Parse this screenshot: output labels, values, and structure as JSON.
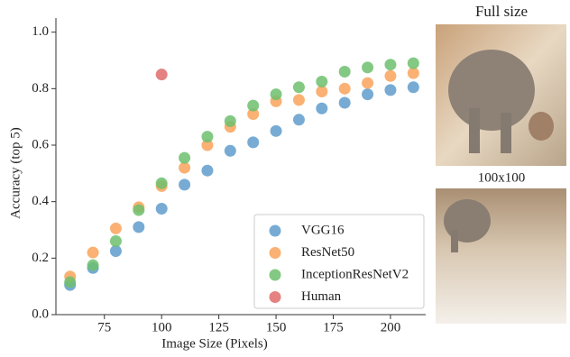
{
  "chart_data": {
    "type": "scatter",
    "xlabel": "Image Size (Pixels)",
    "ylabel": "Accuracy (top 5)",
    "xlim": [
      55,
      215
    ],
    "ylim": [
      0,
      1.05
    ],
    "xticks": [
      75,
      100,
      125,
      150,
      175,
      200
    ],
    "yticks": [
      {
        "value": 0,
        "label": "0.0"
      },
      0.2,
      0.4,
      0.6,
      0.8,
      {
        "value": 1,
        "label": "1.0"
      }
    ],
    "legend": "lower right",
    "series": [
      {
        "name": "VGG16",
        "color": "#5f9ccd",
        "x": [
          60,
          70,
          80,
          90,
          100,
          110,
          120,
          130,
          140,
          150,
          160,
          170,
          180,
          190,
          200,
          210
        ],
        "values": [
          0.105,
          0.165,
          0.225,
          0.31,
          0.375,
          0.46,
          0.51,
          0.58,
          0.61,
          0.65,
          0.69,
          0.73,
          0.75,
          0.78,
          0.795,
          0.805
        ]
      },
      {
        "name": "ResNet50",
        "color": "#f9a35a",
        "x": [
          60,
          70,
          80,
          90,
          100,
          110,
          120,
          130,
          140,
          150,
          160,
          170,
          180,
          190,
          200,
          210
        ],
        "values": [
          0.135,
          0.22,
          0.305,
          0.38,
          0.455,
          0.52,
          0.6,
          0.665,
          0.71,
          0.755,
          0.76,
          0.79,
          0.8,
          0.82,
          0.845,
          0.855
        ]
      },
      {
        "name": "InceptionResNetV2",
        "color": "#6dbf6d",
        "x": [
          60,
          70,
          80,
          90,
          100,
          110,
          120,
          130,
          140,
          150,
          160,
          170,
          180,
          190,
          200,
          210
        ],
        "values": [
          0.115,
          0.175,
          0.26,
          0.37,
          0.465,
          0.555,
          0.63,
          0.685,
          0.74,
          0.78,
          0.805,
          0.825,
          0.86,
          0.875,
          0.885,
          0.89
        ]
      },
      {
        "name": "Human",
        "color": "#e06b6b",
        "x": [
          100
        ],
        "values": [
          0.85
        ]
      }
    ]
  },
  "side_panels": {
    "labels": [
      "Full size",
      "100x100"
    ]
  }
}
